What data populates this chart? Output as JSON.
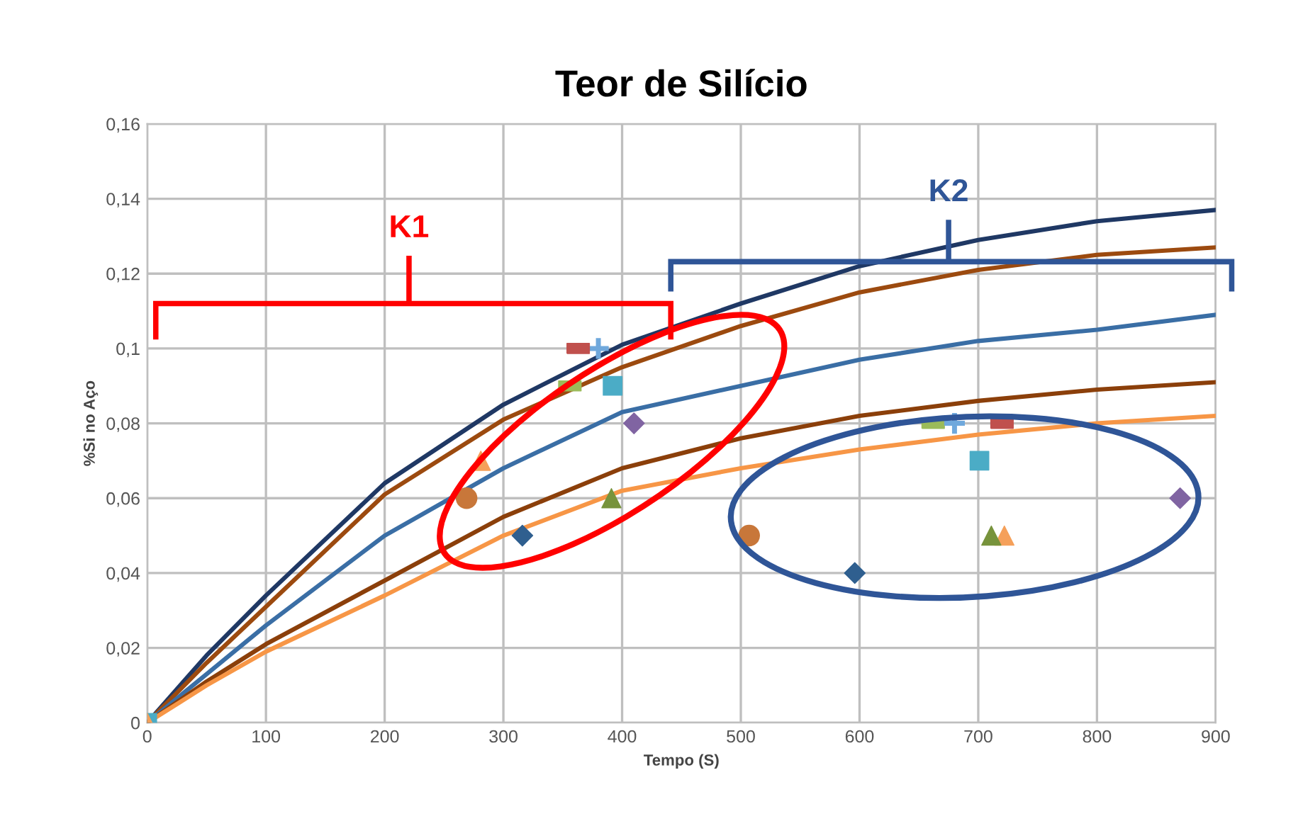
{
  "chart_data": {
    "type": "line",
    "title": "Teor de Silício",
    "xlabel": "Tempo (S)",
    "ylabel": "%Si no Aço",
    "xlim": [
      0,
      900
    ],
    "xticks": [
      0,
      100,
      200,
      300,
      400,
      500,
      600,
      700,
      800,
      900
    ],
    "ylim": [
      0,
      0.16
    ],
    "yticks": [
      {
        "value": 0,
        "label": "0"
      },
      {
        "value": 0.02,
        "label": "0,02"
      },
      {
        "value": 0.04,
        "label": "0,04"
      },
      {
        "value": 0.06,
        "label": "0,06"
      },
      {
        "value": 0.08,
        "label": "0,08"
      },
      {
        "value": 0.1,
        "label": "0,1"
      },
      {
        "value": 0.12,
        "label": "0,12"
      },
      {
        "value": 0.14,
        "label": "0,14"
      },
      {
        "value": 0.16,
        "label": "0,16"
      }
    ],
    "grid": true,
    "legend": false,
    "annotations": [
      "K1",
      "K2"
    ],
    "series": [
      {
        "color": "#1f3864",
        "marker": "none",
        "x": [
          0,
          50,
          100,
          200,
          300,
          400,
          500,
          600,
          700,
          800,
          900
        ],
        "values": [
          0,
          0.018,
          0.034,
          0.064,
          0.085,
          0.101,
          0.112,
          0.122,
          0.129,
          0.134,
          0.137
        ]
      },
      {
        "color": "#9c4a0f",
        "marker": "none",
        "x": [
          0,
          50,
          100,
          200,
          300,
          400,
          500,
          600,
          700,
          800,
          900
        ],
        "values": [
          0,
          0.016,
          0.031,
          0.061,
          0.081,
          0.095,
          0.106,
          0.115,
          0.121,
          0.125,
          0.127
        ]
      },
      {
        "color": "#3a6ea5",
        "marker": "none",
        "x": [
          0,
          50,
          100,
          200,
          300,
          400,
          500,
          600,
          700,
          800,
          900
        ],
        "values": [
          0,
          0.013,
          0.026,
          0.05,
          0.068,
          0.083,
          0.09,
          0.097,
          0.102,
          0.105,
          0.109
        ]
      },
      {
        "color": "#8b3f0a",
        "marker": "none",
        "x": [
          0,
          50,
          100,
          200,
          300,
          400,
          500,
          600,
          700,
          800,
          900
        ],
        "values": [
          0,
          0.011,
          0.021,
          0.038,
          0.055,
          0.068,
          0.076,
          0.082,
          0.086,
          0.089,
          0.091
        ]
      },
      {
        "color": "#f79646",
        "marker": "none",
        "x": [
          0,
          50,
          100,
          200,
          300,
          400,
          500,
          600,
          700,
          800,
          900
        ],
        "values": [
          0,
          0.01,
          0.019,
          0.034,
          0.05,
          0.062,
          0.068,
          0.073,
          0.077,
          0.08,
          0.082
        ]
      },
      {
        "type": "scatter",
        "color": "#4bacc6",
        "marker": "square",
        "x": [
          0,
          392,
          701
        ],
        "values": [
          0,
          0.09,
          0.07
        ]
      },
      {
        "type": "scatter",
        "color": "#c8773a",
        "marker": "circle",
        "x": [
          269,
          507
        ],
        "values": [
          0.06,
          0.05
        ]
      },
      {
        "type": "scatter",
        "color": "#f5a05a",
        "marker": "triangle",
        "x": [
          0,
          281,
          722
        ],
        "values": [
          0,
          0.07,
          0.05
        ]
      },
      {
        "type": "scatter",
        "color": "#77933c",
        "marker": "triangle",
        "x": [
          391,
          711
        ],
        "values": [
          0.06,
          0.05
        ]
      },
      {
        "type": "scatter",
        "color": "#2f5f8f",
        "marker": "diamond",
        "x": [
          316,
          596
        ],
        "values": [
          0.05,
          0.04
        ]
      },
      {
        "type": "scatter",
        "color": "#8064a2",
        "marker": "diamond",
        "x": [
          410,
          870
        ],
        "values": [
          0.08,
          0.06
        ]
      },
      {
        "type": "scatter",
        "color": "#9bbb59",
        "x": [
          356,
          662
        ],
        "values": [
          0.09,
          0.08
        ]
      },
      {
        "type": "scatter",
        "color": "#6fa8dc",
        "marker": "cross",
        "x": [
          380,
          680
        ],
        "values": [
          0.1,
          0.08
        ]
      },
      {
        "type": "scatter",
        "color": "#c0504d",
        "x": [
          363,
          720
        ],
        "values": [
          0.1,
          0.08
        ]
      }
    ]
  }
}
